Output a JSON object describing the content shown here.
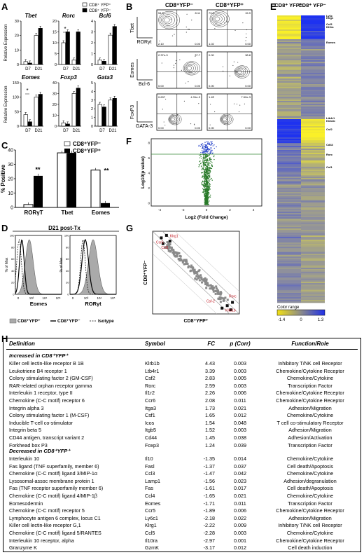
{
  "panels": {
    "A": "A",
    "B": "B",
    "C": "C",
    "D": "D",
    "E": "E",
    "F": "F",
    "G": "G",
    "H": "H"
  },
  "panel_a": {
    "legend": [
      "CD8⁺ YFP⁺",
      "CD8⁺ YFP⁻"
    ],
    "ylabel": "Relative Expression",
    "xcats": [
      "D7",
      "D21"
    ],
    "colors": {
      "yfp_pos": "#ffffff",
      "yfp_neg": "#000000"
    },
    "genes": [
      {
        "name": "Tbet",
        "yticks": [
          "0",
          "10",
          "20",
          "30"
        ],
        "ymax": 30,
        "values": [
          [
            2,
            1
          ],
          [
            20,
            25
          ]
        ],
        "star": ""
      },
      {
        "name": "Rorc",
        "yticks": [
          "0",
          "5",
          "10",
          "15",
          "20"
        ],
        "ymax": 20,
        "values": [
          [
            10,
            15
          ],
          [
            2,
            15
          ]
        ],
        "star": "*"
      },
      {
        "name": "Bcl6",
        "yticks": [
          "0",
          "1",
          "2",
          "3",
          "4"
        ],
        "ymax": 4,
        "values": [
          [
            0.4,
            0.3
          ],
          [
            2.7,
            3.5
          ]
        ],
        "star": ""
      },
      {
        "name": "Eomes",
        "yticks": [
          "0",
          "50",
          "100",
          "150"
        ],
        "ymax": 150,
        "values": [
          [
            40,
            15
          ],
          [
            100,
            110
          ]
        ],
        "star": "*"
      },
      {
        "name": "Foxp3",
        "yticks": [
          "0",
          "10",
          "20",
          "30",
          "40"
        ],
        "ymax": 40,
        "values": [
          [
            3,
            2
          ],
          [
            30,
            35
          ]
        ],
        "star": ""
      },
      {
        "name": "Gata3",
        "yticks": [
          "0",
          "1",
          "2",
          "3",
          "4",
          "5"
        ],
        "ymax": 5,
        "values": [
          [
            2.5,
            2.2
          ],
          [
            3,
            3.2
          ]
        ],
        "star": ""
      }
    ]
  },
  "panel_b": {
    "col_titles": [
      "CD8⁺YFP⁻",
      "CD8⁺YFP⁺"
    ],
    "rows": [
      {
        "ylab": "Tbet",
        "xlab": "RORγt",
        "quads": [
          [
            "54.3",
            "8.11",
            "2.10",
            "0.00"
          ],
          [
            "73.2",
            "15.9",
            "1.02",
            "0.00"
          ]
        ]
      },
      {
        "ylab": "Eomes",
        "xlab": "Bcl-6",
        "quads": [
          [
            "2.37e-3",
            "37.7",
            "0.00",
            "0.00"
          ],
          [
            "0.00",
            "38.8",
            "0.00",
            "0.00"
          ]
        ]
      },
      {
        "ylab": "FoxP3",
        "xlab": "GATA-3",
        "quads": [
          [
            "0.637",
            "4.31e-3",
            "0.00",
            "0.00"
          ],
          [
            "1.42",
            "7.52e-3",
            "0.00",
            "0.00"
          ]
        ]
      }
    ]
  },
  "panel_c": {
    "legend": [
      "CD8⁺YFP⁻",
      "CD8⁺YFP⁺"
    ],
    "ylabel": "% Positive",
    "yticks": [
      "0",
      "10",
      "20",
      "30",
      "40"
    ],
    "ymax": 40,
    "categories": [
      "RORγT",
      "Tbet",
      "Eomes"
    ],
    "values_yfp_neg": [
      2,
      38,
      26
    ],
    "values_yfp_pos": [
      22,
      38,
      3
    ],
    "stars": [
      "**",
      "",
      "**"
    ]
  },
  "panel_d": {
    "title": "D21 post-Tx",
    "ylabel": "% of Max",
    "yticks": [
      "0",
      "20",
      "40",
      "60",
      "80",
      "100"
    ],
    "xlabels": [
      "Eomes",
      "RORγt"
    ],
    "xticks": [
      "0",
      "10³",
      "10⁴",
      "10⁵"
    ],
    "legend": [
      "CD8⁺YFP⁺",
      "CD8⁺YFP⁻",
      "Isotype"
    ]
  },
  "panel_e": {
    "col_labels": [
      "CD8⁺ YFP⁺",
      "CD8⁺ YFP⁻"
    ],
    "genes_top": [
      "Ly6c",
      "Klrg1",
      "Ccl5",
      "Il10ra",
      "Eomes"
    ],
    "genes_mid": [
      "Ltb4r1",
      "Klrb1b",
      "Csf2",
      "Cd44",
      "Rorc",
      "Csf1"
    ],
    "color_range_label": "Color range",
    "color_ticks": [
      "-1.4",
      "0",
      "1.3"
    ]
  },
  "panel_f": {
    "xlabel": "Log2 (Fold Change)",
    "ylabel": "Log10(p value)",
    "xticks": [
      "-4",
      "-2",
      "0",
      "2",
      "4"
    ],
    "yticks": [
      "0",
      "2",
      "4",
      "6",
      "8"
    ]
  },
  "panel_g": {
    "xlabel": "CD8⁺YFP⁺",
    "ylabel": "CD8⁺YFP⁻",
    "labels": [
      "Klrg1",
      "Ccr5",
      "Ccl5",
      "Csf-2",
      "Rorc",
      "Klrb1b"
    ]
  },
  "panel_h": {
    "headers": [
      "Definition",
      "Symbol",
      "FC",
      "p (Corr)",
      "Function/Role"
    ],
    "section_increased": "Increased in CD8⁺YFP⁺",
    "section_decreased": "Decreased in CD8⁺YFP⁺",
    "increased": [
      [
        "Killer cell lectin-like receptor B 1B",
        "Klrb1b",
        "4.43",
        "0.003",
        "Inhibitory T/NK cell Receptor"
      ],
      [
        "Leukotriene B4 receptor 1",
        "Ltb4r1",
        "3.39",
        "0.003",
        "Chemokine/Cytokine Receptor"
      ],
      [
        "Colony stimulating factor 2 (GM-CSF)",
        "Csf2",
        "2.83",
        "0.005",
        "Chemokine/Cytokine"
      ],
      [
        "RAR-related orphan receptor gamma",
        "Rorc",
        "2.59",
        "0.003",
        "Transcription Factor"
      ],
      [
        "Interleukin 1 receptor, type II",
        "Il1r2",
        "2.26",
        "0.006",
        "Chemokine/Cytokine Receptor"
      ],
      [
        "Chemokine (C-C motif) receptor 6",
        "Ccr6",
        "2.08",
        "0.011",
        "Chemokine/Cytokine Receptor"
      ],
      [
        "Integrin alpha 3",
        "Itga3",
        "1.73",
        "0.021",
        "Adhesion/Migration"
      ],
      [
        "Colony stimulating factor 1 (M-CSF)",
        "Csf1",
        "1.65",
        "0.012",
        "Chemokine/Cytokine"
      ],
      [
        "Inducible T-cell co-stimulator",
        "Icos",
        "1.54",
        "0.048",
        "T cell co-stimulatory Receptor"
      ],
      [
        "Integrin beta 5",
        "Itgb5",
        "1.52",
        "0.003",
        "Adhesion/Migration"
      ],
      [
        "CD44 antigen, transcript variant 2",
        "Cd44",
        "1.45",
        "0.038",
        "Adhesion/Activation"
      ],
      [
        "Forkhead box P3",
        "Foxp3",
        "1.24",
        "0.039",
        "Transcription Factor"
      ]
    ],
    "decreased": [
      [
        "Interleukin 10",
        "Il10",
        "-1.35",
        "0.014",
        "Chemokine/Cytokine"
      ],
      [
        "Fas ligand (TNF superfamily, member 6)",
        "Fasl",
        "-1.37",
        "0.037",
        "Cell death/Apoptosis"
      ],
      [
        "Chemokine (C-C motif) ligand 3/MIP-1α",
        "Ccl3",
        "-1.47",
        "0.042",
        "Chemokine/Cytokine"
      ],
      [
        "Lysosomal-assoc membrane protein 1",
        "Lamp1",
        "-1.56",
        "0.023",
        "Adhesion/degranulation"
      ],
      [
        "Fas (TNF receptor superfamily member 6)",
        "Fas",
        "-1.61",
        "0.017",
        "Cell death/Apoptosis"
      ],
      [
        "Chemokine (C-C motif) ligand 4/MIP-1β",
        "Ccl4",
        "-1.65",
        "0.021",
        "Chemokine/Cytokine"
      ],
      [
        "Eomesodermin",
        "Eomes",
        "-1.71",
        "0.011",
        "Transcription Factor"
      ],
      [
        "Chemokine (C-C motif) receptor 5",
        "Ccr5",
        "-1.89",
        "0.006",
        "Chemokine/Cytokine Receptor"
      ],
      [
        "Lymphocyte antigen 6 complex, locus C1",
        "Ly6c1",
        "-2.18",
        "0.022",
        "Adhesion/Migration"
      ],
      [
        "Killer cell lectin-like receptor G,1",
        "Klrg1",
        "-2.22",
        "0.009",
        "Inhibitory T/NK cell Receptor"
      ],
      [
        "Chemokine (C-C motif) ligand 5/RANTES",
        "Ccl5",
        "-2.28",
        "0.003",
        "Chemokine/Cytokine"
      ],
      [
        "Interleukin 10 receptor, alpha",
        "Il10ra",
        "-2.97",
        "0.001",
        "Chemokine/Cytokine Receptor"
      ],
      [
        "Granzyme K",
        "GzmK",
        "-3.17",
        "0.012",
        "Cell death induction"
      ]
    ]
  }
}
